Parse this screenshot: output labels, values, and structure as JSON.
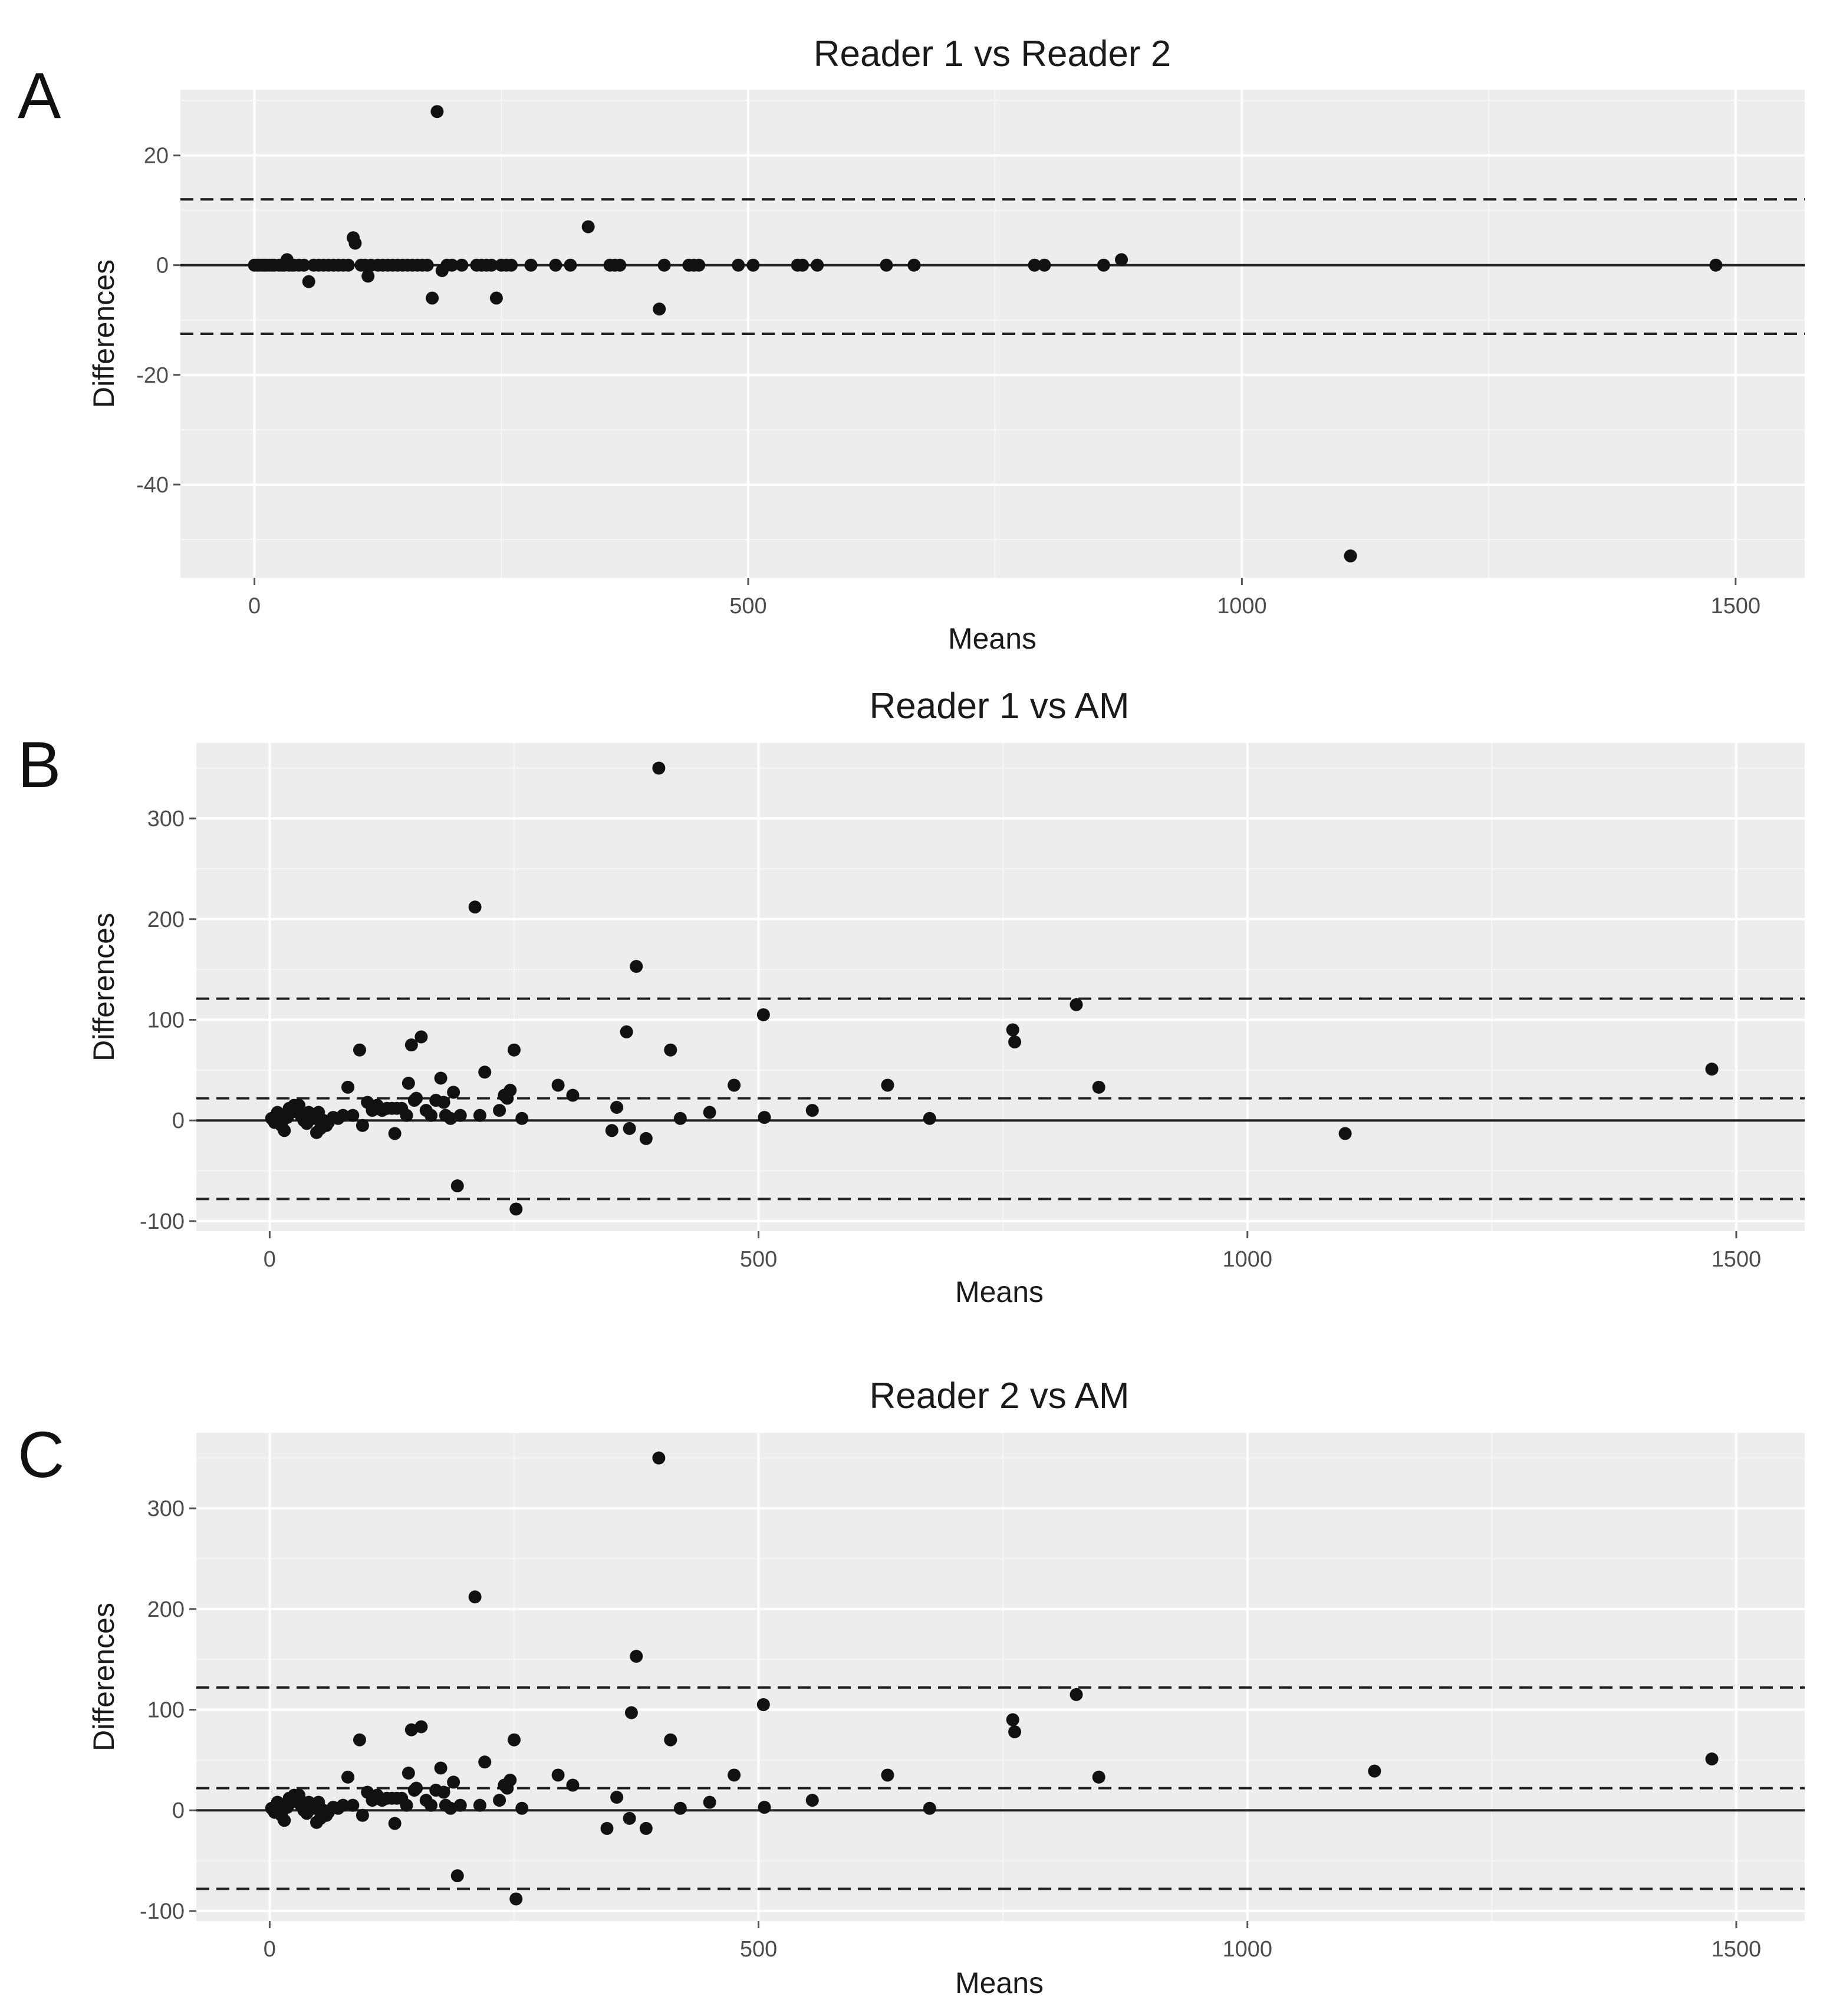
{
  "chart_data": [
    {
      "type": "scatter",
      "panel_label": "A",
      "title": "Reader 1 vs Reader 2",
      "xlabel": "Means",
      "ylabel": "Differences",
      "xlim": [
        -75,
        1570
      ],
      "ylim": [
        -57,
        32
      ],
      "xticks": [
        0,
        500,
        1000,
        1500
      ],
      "yticks": [
        20,
        0,
        -20,
        -40
      ],
      "grid": true,
      "mean_diff": 0,
      "loa_upper": 12,
      "loa_lower": -12.5,
      "points": [
        [
          0,
          0
        ],
        [
          3,
          0
        ],
        [
          5,
          0
        ],
        [
          8,
          0
        ],
        [
          10,
          0
        ],
        [
          12,
          0
        ],
        [
          15,
          0
        ],
        [
          18,
          0
        ],
        [
          20,
          0
        ],
        [
          25,
          0
        ],
        [
          28,
          0
        ],
        [
          30,
          0
        ],
        [
          33,
          1
        ],
        [
          35,
          0
        ],
        [
          38,
          0
        ],
        [
          40,
          0
        ],
        [
          45,
          0
        ],
        [
          50,
          0
        ],
        [
          55,
          -3
        ],
        [
          60,
          0
        ],
        [
          65,
          0
        ],
        [
          70,
          0
        ],
        [
          75,
          0
        ],
        [
          80,
          0
        ],
        [
          85,
          0
        ],
        [
          90,
          0
        ],
        [
          95,
          0
        ],
        [
          100,
          5
        ],
        [
          102,
          4
        ],
        [
          108,
          0
        ],
        [
          112,
          0
        ],
        [
          115,
          -2
        ],
        [
          118,
          0
        ],
        [
          125,
          0
        ],
        [
          130,
          0
        ],
        [
          135,
          0
        ],
        [
          140,
          0
        ],
        [
          145,
          0
        ],
        [
          150,
          0
        ],
        [
          155,
          0
        ],
        [
          160,
          0
        ],
        [
          165,
          0
        ],
        [
          170,
          0
        ],
        [
          175,
          0
        ],
        [
          180,
          -6
        ],
        [
          185,
          28
        ],
        [
          190,
          -1
        ],
        [
          195,
          0
        ],
        [
          200,
          0
        ],
        [
          210,
          0
        ],
        [
          225,
          0
        ],
        [
          230,
          0
        ],
        [
          235,
          0
        ],
        [
          240,
          0
        ],
        [
          245,
          -6
        ],
        [
          250,
          0
        ],
        [
          255,
          0
        ],
        [
          260,
          0
        ],
        [
          280,
          0
        ],
        [
          305,
          0
        ],
        [
          320,
          0
        ],
        [
          338,
          7
        ],
        [
          360,
          0
        ],
        [
          365,
          0
        ],
        [
          370,
          0
        ],
        [
          410,
          -8
        ],
        [
          415,
          0
        ],
        [
          440,
          0
        ],
        [
          445,
          0
        ],
        [
          450,
          0
        ],
        [
          490,
          0
        ],
        [
          505,
          0
        ],
        [
          550,
          0
        ],
        [
          555,
          0
        ],
        [
          570,
          0
        ],
        [
          640,
          0
        ],
        [
          668,
          0
        ],
        [
          790,
          0
        ],
        [
          800,
          0
        ],
        [
          860,
          0
        ],
        [
          878,
          1
        ],
        [
          1110,
          -53
        ],
        [
          1480,
          0
        ]
      ]
    },
    {
      "type": "scatter",
      "panel_label": "B",
      "title": "Reader 1 vs AM",
      "xlabel": "Means",
      "ylabel": "Differences",
      "xlim": [
        -75,
        1570
      ],
      "ylim": [
        -110,
        375
      ],
      "xticks": [
        0,
        500,
        1000,
        1500
      ],
      "yticks": [
        300,
        200,
        100,
        0,
        -100
      ],
      "grid": true,
      "mean_diff": 0,
      "bias": 22,
      "loa_upper": 121,
      "loa_lower": -78,
      "points": [
        [
          2,
          2
        ],
        [
          5,
          -2
        ],
        [
          8,
          8
        ],
        [
          10,
          5
        ],
        [
          12,
          -5
        ],
        [
          15,
          -10
        ],
        [
          18,
          3
        ],
        [
          20,
          12
        ],
        [
          22,
          8
        ],
        [
          25,
          15
        ],
        [
          28,
          10
        ],
        [
          30,
          15
        ],
        [
          32,
          5
        ],
        [
          35,
          0
        ],
        [
          38,
          -3
        ],
        [
          40,
          8
        ],
        [
          42,
          5
        ],
        [
          45,
          2
        ],
        [
          48,
          -12
        ],
        [
          50,
          8
        ],
        [
          52,
          -8
        ],
        [
          55,
          0
        ],
        [
          58,
          -5
        ],
        [
          60,
          -2
        ],
        [
          65,
          3
        ],
        [
          70,
          2
        ],
        [
          75,
          5
        ],
        [
          80,
          33
        ],
        [
          85,
          5
        ],
        [
          92,
          70
        ],
        [
          95,
          -5
        ],
        [
          100,
          18
        ],
        [
          105,
          10
        ],
        [
          110,
          15
        ],
        [
          115,
          10
        ],
        [
          120,
          12
        ],
        [
          125,
          12
        ],
        [
          128,
          -13
        ],
        [
          130,
          12
        ],
        [
          135,
          12
        ],
        [
          140,
          5
        ],
        [
          142,
          37
        ],
        [
          145,
          75
        ],
        [
          148,
          20
        ],
        [
          150,
          22
        ],
        [
          155,
          83
        ],
        [
          160,
          10
        ],
        [
          165,
          5
        ],
        [
          170,
          20
        ],
        [
          175,
          42
        ],
        [
          178,
          18
        ],
        [
          180,
          5
        ],
        [
          185,
          2
        ],
        [
          188,
          28
        ],
        [
          192,
          -65
        ],
        [
          195,
          5
        ],
        [
          210,
          212
        ],
        [
          215,
          5
        ],
        [
          220,
          48
        ],
        [
          235,
          10
        ],
        [
          240,
          25
        ],
        [
          243,
          22
        ],
        [
          246,
          30
        ],
        [
          250,
          70
        ],
        [
          252,
          -88
        ],
        [
          258,
          2
        ],
        [
          295,
          35
        ],
        [
          310,
          25
        ],
        [
          350,
          -10
        ],
        [
          355,
          13
        ],
        [
          365,
          88
        ],
        [
          368,
          -8
        ],
        [
          375,
          153
        ],
        [
          385,
          -18
        ],
        [
          398,
          350
        ],
        [
          410,
          70
        ],
        [
          420,
          2
        ],
        [
          450,
          8
        ],
        [
          475,
          35
        ],
        [
          505,
          105
        ],
        [
          506,
          3
        ],
        [
          555,
          10
        ],
        [
          632,
          35
        ],
        [
          675,
          2
        ],
        [
          760,
          90
        ],
        [
          762,
          78
        ],
        [
          825,
          115
        ],
        [
          848,
          33
        ],
        [
          1100,
          -13
        ],
        [
          1475,
          51
        ]
      ]
    },
    {
      "type": "scatter",
      "panel_label": "C",
      "title": "Reader 2 vs AM",
      "xlabel": "Means",
      "ylabel": "Differences",
      "xlim": [
        -75,
        1570
      ],
      "ylim": [
        -110,
        375
      ],
      "xticks": [
        0,
        500,
        1000,
        1500
      ],
      "yticks": [
        300,
        200,
        100,
        0,
        -100
      ],
      "grid": true,
      "mean_diff": 0,
      "bias": 22,
      "loa_upper": 122,
      "loa_lower": -78,
      "points": [
        [
          2,
          2
        ],
        [
          5,
          -2
        ],
        [
          8,
          8
        ],
        [
          10,
          5
        ],
        [
          12,
          -5
        ],
        [
          15,
          -10
        ],
        [
          18,
          3
        ],
        [
          20,
          12
        ],
        [
          22,
          8
        ],
        [
          25,
          15
        ],
        [
          28,
          10
        ],
        [
          30,
          15
        ],
        [
          32,
          5
        ],
        [
          35,
          0
        ],
        [
          38,
          -3
        ],
        [
          40,
          8
        ],
        [
          42,
          5
        ],
        [
          45,
          2
        ],
        [
          48,
          -12
        ],
        [
          50,
          8
        ],
        [
          52,
          -8
        ],
        [
          55,
          0
        ],
        [
          58,
          -5
        ],
        [
          60,
          -2
        ],
        [
          65,
          3
        ],
        [
          70,
          2
        ],
        [
          75,
          5
        ],
        [
          80,
          33
        ],
        [
          85,
          5
        ],
        [
          92,
          70
        ],
        [
          95,
          -5
        ],
        [
          100,
          18
        ],
        [
          105,
          10
        ],
        [
          110,
          15
        ],
        [
          115,
          10
        ],
        [
          120,
          12
        ],
        [
          125,
          12
        ],
        [
          128,
          -13
        ],
        [
          130,
          12
        ],
        [
          135,
          12
        ],
        [
          140,
          5
        ],
        [
          142,
          37
        ],
        [
          145,
          80
        ],
        [
          148,
          20
        ],
        [
          150,
          22
        ],
        [
          155,
          83
        ],
        [
          160,
          10
        ],
        [
          165,
          5
        ],
        [
          170,
          20
        ],
        [
          175,
          42
        ],
        [
          178,
          18
        ],
        [
          180,
          5
        ],
        [
          185,
          2
        ],
        [
          188,
          28
        ],
        [
          192,
          -65
        ],
        [
          195,
          5
        ],
        [
          210,
          212
        ],
        [
          215,
          5
        ],
        [
          220,
          48
        ],
        [
          235,
          10
        ],
        [
          240,
          25
        ],
        [
          243,
          22
        ],
        [
          246,
          30
        ],
        [
          250,
          70
        ],
        [
          252,
          -88
        ],
        [
          258,
          2
        ],
        [
          295,
          35
        ],
        [
          310,
          25
        ],
        [
          345,
          -18
        ],
        [
          355,
          13
        ],
        [
          368,
          -8
        ],
        [
          370,
          97
        ],
        [
          375,
          153
        ],
        [
          385,
          -18
        ],
        [
          398,
          350
        ],
        [
          410,
          70
        ],
        [
          420,
          2
        ],
        [
          450,
          8
        ],
        [
          475,
          35
        ],
        [
          505,
          105
        ],
        [
          506,
          3
        ],
        [
          555,
          10
        ],
        [
          632,
          35
        ],
        [
          675,
          2
        ],
        [
          760,
          90
        ],
        [
          762,
          78
        ],
        [
          825,
          115
        ],
        [
          848,
          33
        ],
        [
          1130,
          39
        ],
        [
          1475,
          51
        ]
      ]
    }
  ]
}
